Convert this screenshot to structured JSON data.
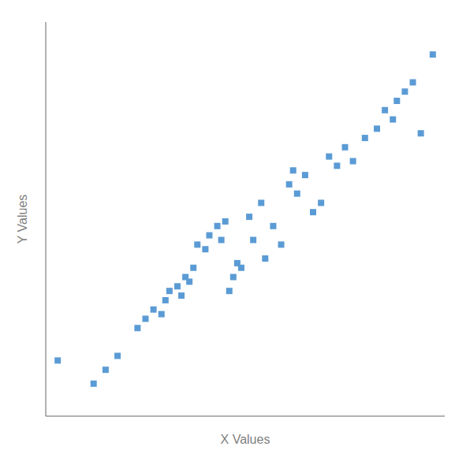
{
  "chart_data": {
    "type": "scatter",
    "xlabel": "X Values",
    "ylabel": "Y Values",
    "x": [
      3,
      12,
      15,
      18,
      23,
      25,
      27,
      29,
      30,
      31,
      33,
      34,
      35,
      36,
      37,
      38,
      40,
      41,
      43,
      44,
      45,
      46,
      47,
      48,
      49,
      51,
      52,
      54,
      55,
      57,
      59,
      61,
      62,
      63,
      65,
      67,
      69,
      71,
      73,
      75,
      77,
      80,
      83,
      85,
      87,
      88,
      90,
      92,
      94,
      97
    ],
    "values": [
      12,
      7,
      10,
      13,
      19,
      21,
      23,
      22,
      25,
      27,
      28,
      26,
      30,
      29,
      32,
      37,
      36,
      39,
      41,
      38,
      42,
      27,
      30,
      33,
      32,
      43,
      38,
      46,
      34,
      41,
      37,
      50,
      53,
      48,
      52,
      44,
      46,
      56,
      54,
      58,
      55,
      60,
      62,
      66,
      64,
      68,
      70,
      72,
      61,
      78
    ],
    "color": "#5b9bd5",
    "marker": "square",
    "xlim": [
      0,
      100
    ],
    "ylim": [
      0,
      85
    ],
    "grid": false,
    "tick_labels": false
  }
}
